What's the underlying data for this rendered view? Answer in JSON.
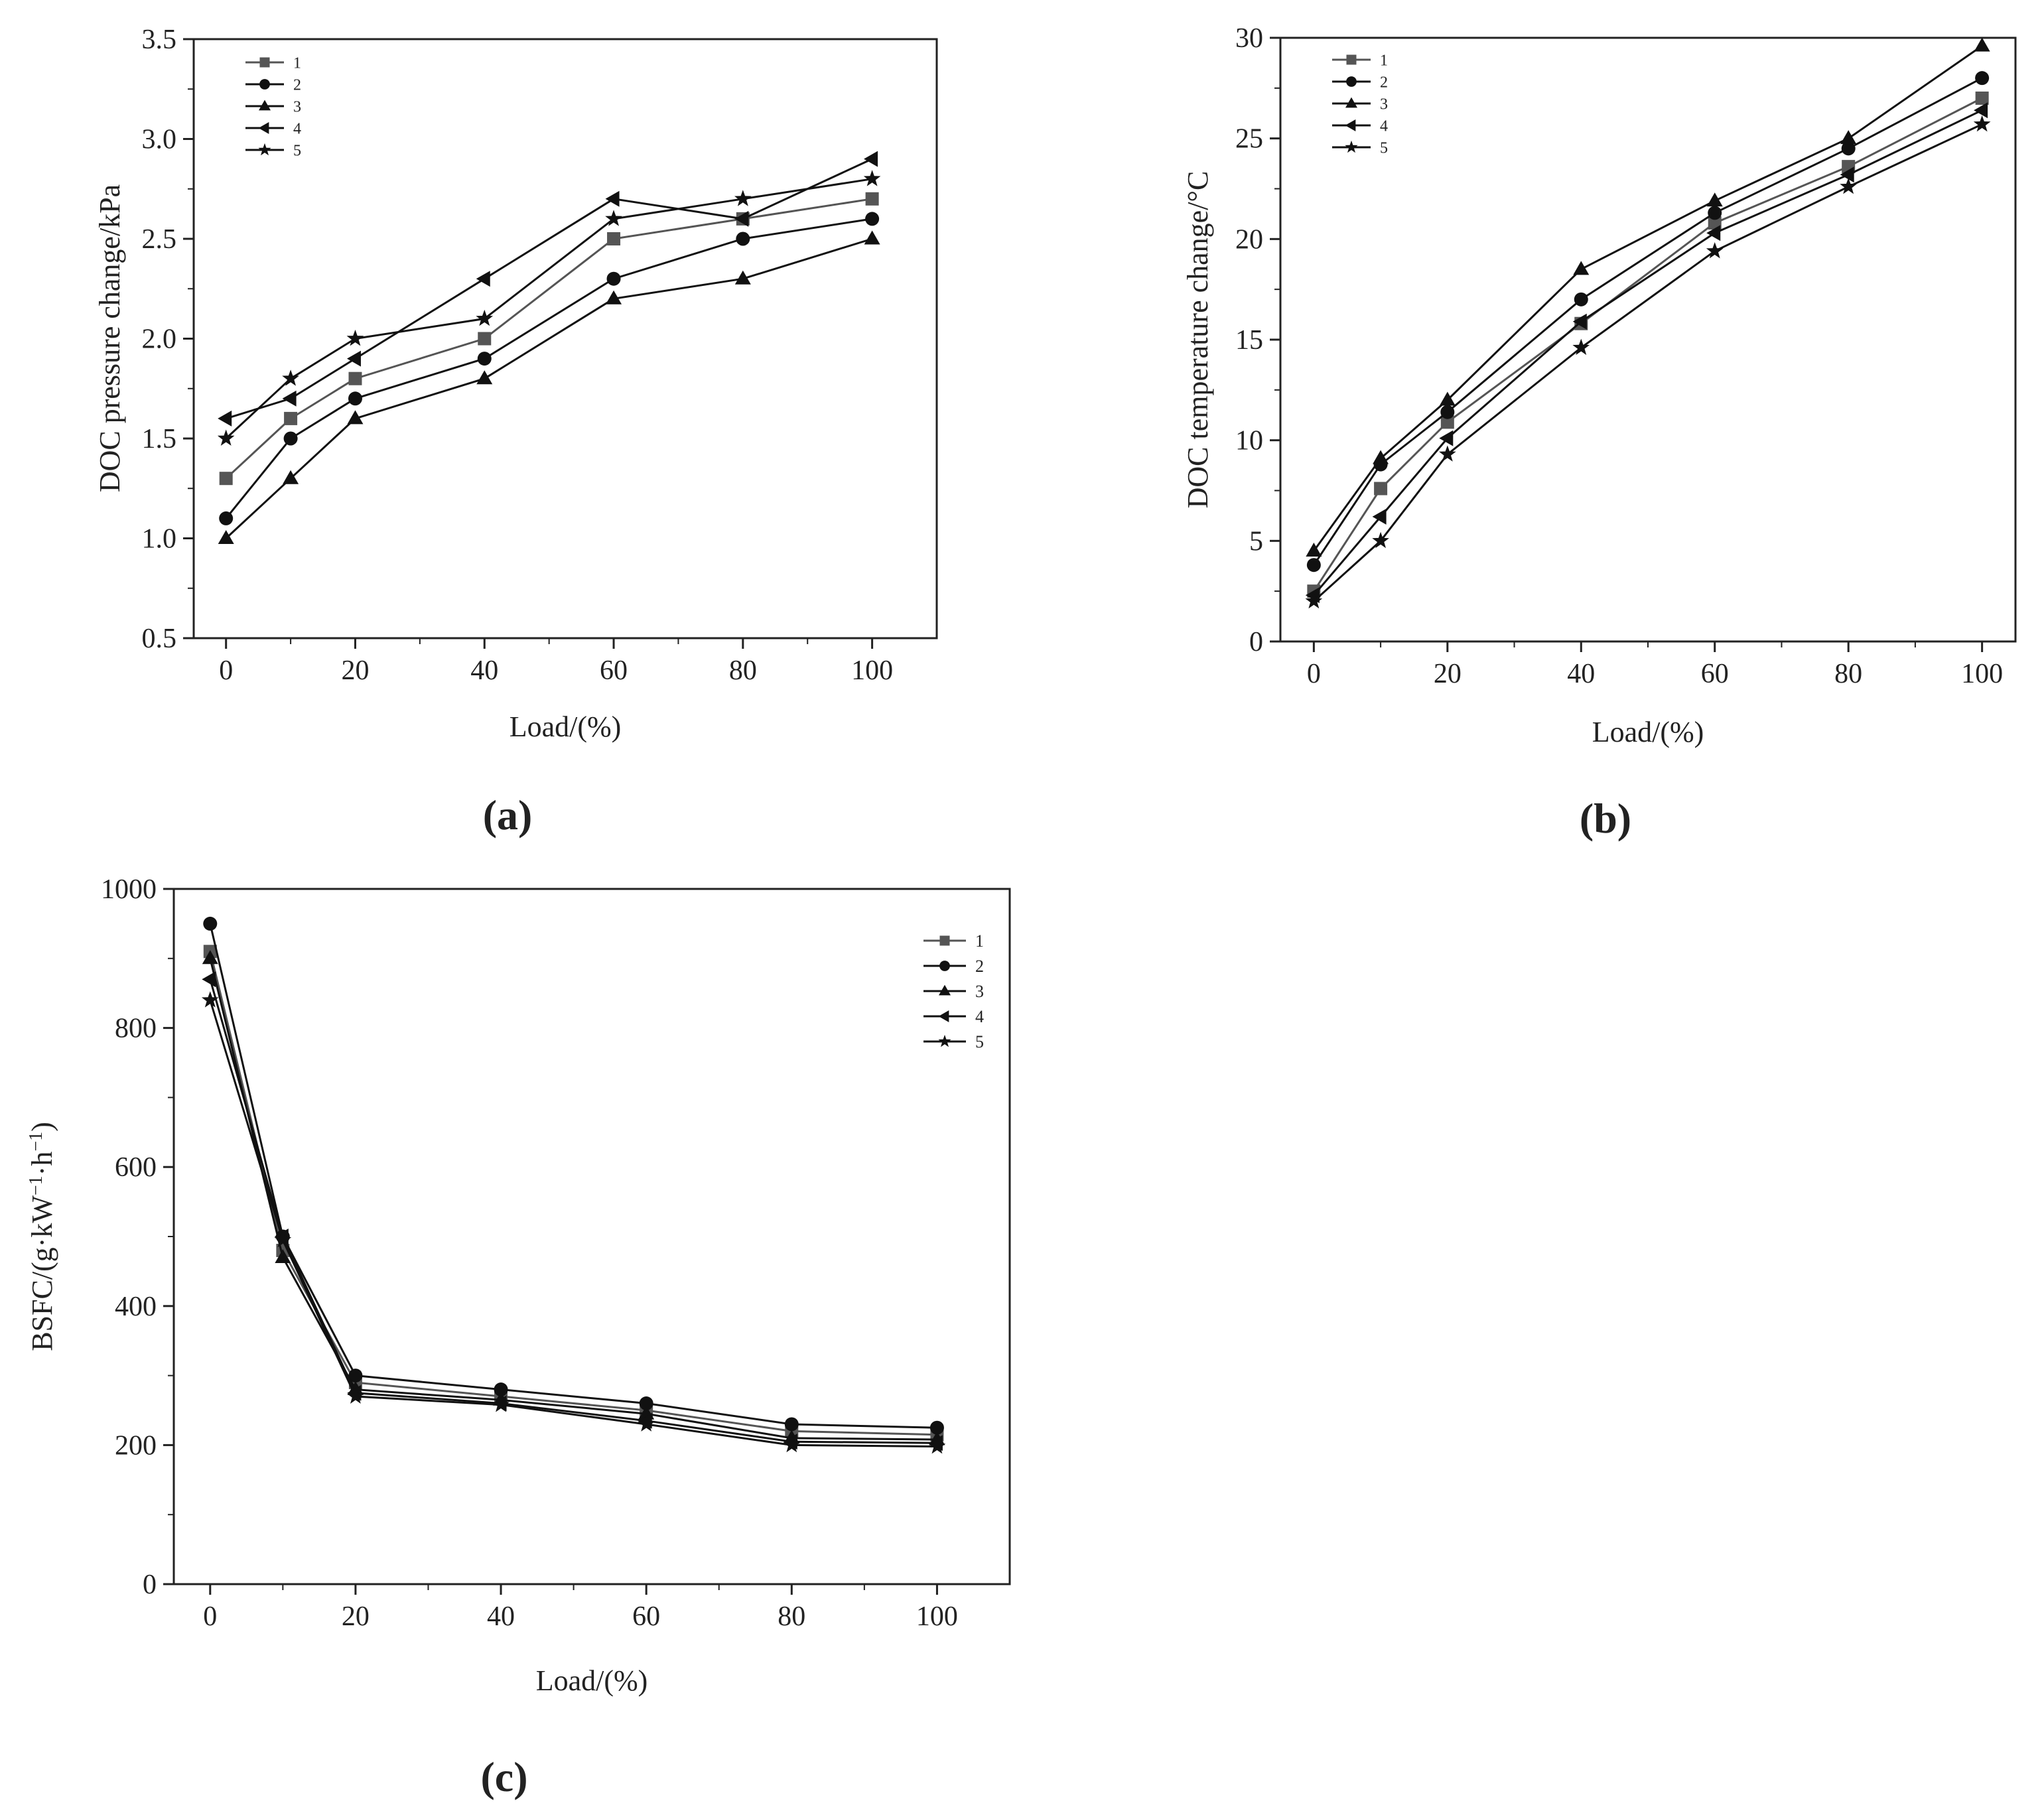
{
  "chart_data": [
    {
      "id": "a",
      "type": "line",
      "caption": "(a)",
      "title": "",
      "xlabel": "Load/(%)",
      "ylabel": "DOC pressure change/kPa",
      "xlim": [
        -5,
        110
      ],
      "ylim": [
        0.5,
        3.5
      ],
      "xticks": [
        "0",
        "20",
        "40",
        "60",
        "80",
        "100"
      ],
      "yticks": [
        "0.5",
        "1.0",
        "1.5",
        "2.0",
        "2.5",
        "3.0",
        "3.5"
      ],
      "legend_position": "top-left",
      "x": [
        0,
        10,
        20,
        40,
        60,
        80,
        100
      ],
      "series": [
        {
          "name": "1",
          "marker": "square",
          "color": "#555555",
          "values": [
            1.3,
            1.6,
            1.8,
            2.0,
            2.5,
            2.6,
            2.7
          ]
        },
        {
          "name": "2",
          "marker": "circle",
          "color": "#111111",
          "values": [
            1.1,
            1.5,
            1.7,
            1.9,
            2.3,
            2.5,
            2.6
          ]
        },
        {
          "name": "3",
          "marker": "triangle-up",
          "color": "#111111",
          "values": [
            1.0,
            1.3,
            1.6,
            1.8,
            2.2,
            2.3,
            2.5
          ]
        },
        {
          "name": "4",
          "marker": "triangle-left",
          "color": "#111111",
          "values": [
            1.6,
            1.7,
            1.9,
            2.3,
            2.7,
            2.6,
            2.9
          ]
        },
        {
          "name": "5",
          "marker": "star",
          "color": "#111111",
          "values": [
            1.5,
            1.8,
            2.0,
            2.1,
            2.6,
            2.7,
            2.8
          ]
        }
      ]
    },
    {
      "id": "b",
      "type": "line",
      "caption": "(b)",
      "title": "",
      "xlabel": "Load/(%)",
      "ylabel": "DOC temperature change/°C",
      "xlim": [
        -5,
        105
      ],
      "ylim": [
        0,
        30
      ],
      "xticks": [
        "0",
        "20",
        "40",
        "60",
        "80",
        "100"
      ],
      "yticks": [
        "0",
        "5",
        "10",
        "15",
        "20",
        "25",
        "30"
      ],
      "legend_position": "top-left",
      "x": [
        0,
        10,
        20,
        40,
        60,
        80,
        100
      ],
      "series": [
        {
          "name": "1",
          "marker": "square",
          "color": "#555555",
          "values": [
            2.5,
            7.6,
            10.9,
            15.8,
            20.8,
            23.6,
            27.0
          ]
        },
        {
          "name": "2",
          "marker": "circle",
          "color": "#111111",
          "values": [
            3.8,
            8.8,
            11.4,
            17.0,
            21.3,
            24.5,
            28.0
          ]
        },
        {
          "name": "3",
          "marker": "triangle-up",
          "color": "#111111",
          "values": [
            4.5,
            9.1,
            12.0,
            18.5,
            21.9,
            25.0,
            29.6
          ]
        },
        {
          "name": "4",
          "marker": "triangle-left",
          "color": "#111111",
          "values": [
            2.3,
            6.2,
            10.1,
            15.9,
            20.3,
            23.2,
            26.4
          ]
        },
        {
          "name": "5",
          "marker": "star",
          "color": "#111111",
          "values": [
            2.0,
            5.0,
            9.3,
            14.6,
            19.4,
            22.6,
            25.7
          ]
        }
      ]
    },
    {
      "id": "c",
      "type": "line",
      "caption": "(c)",
      "title": "",
      "xlabel": "Load/(%)",
      "ylabel_main": "BSFC/(g·kW",
      "ylabel_sup1": "−1",
      "ylabel_mid": "·h",
      "ylabel_sup2": "−1",
      "ylabel_end": ")",
      "xlim": [
        -5,
        110
      ],
      "ylim": [
        0,
        1000
      ],
      "xticks": [
        "0",
        "20",
        "40",
        "60",
        "80",
        "100"
      ],
      "yticks": [
        "0",
        "200",
        "400",
        "600",
        "800",
        "1000"
      ],
      "legend_position": "top-right",
      "x": [
        0,
        10,
        20,
        40,
        60,
        80,
        100
      ],
      "series": [
        {
          "name": "1",
          "marker": "square",
          "color": "#555555",
          "values": [
            910,
            480,
            290,
            270,
            250,
            220,
            215
          ]
        },
        {
          "name": "2",
          "marker": "circle",
          "color": "#111111",
          "values": [
            950,
            500,
            300,
            280,
            260,
            230,
            225
          ]
        },
        {
          "name": "3",
          "marker": "triangle-up",
          "color": "#111111",
          "values": [
            900,
            470,
            280,
            265,
            245,
            210,
            208
          ]
        },
        {
          "name": "4",
          "marker": "triangle-left",
          "color": "#111111",
          "values": [
            870,
            500,
            275,
            260,
            235,
            205,
            203
          ]
        },
        {
          "name": "5",
          "marker": "star",
          "color": "#111111",
          "values": [
            840,
            495,
            270,
            258,
            230,
            200,
            198
          ]
        }
      ]
    }
  ]
}
